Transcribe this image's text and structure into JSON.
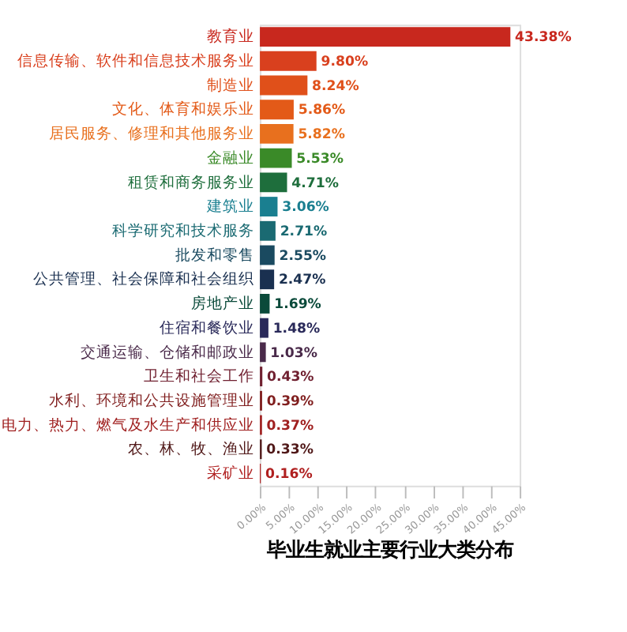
{
  "chart_data": {
    "type": "bar",
    "orientation": "horizontal",
    "title": "毕业生就业主要行业大类分布",
    "categories": [
      "教育业",
      "信息传输、软件和信息技术服务业",
      "制造业",
      "文化、体育和娱乐业",
      "居民服务、修理和其他服务业",
      "金融业",
      "租赁和商务服务业",
      "建筑业",
      "科学研究和技术服务",
      "批发和零售",
      "公共管理、社会保障和社会组织",
      "房地产业",
      "住宿和餐饮业",
      "交通运输、仓储和邮政业",
      "卫生和社会工作",
      "水利、环境和公共设施管理业",
      "电力、热力、燃气及水生产和供应业",
      "农、林、牧、渔业",
      "采矿业"
    ],
    "values": [
      43.38,
      9.8,
      8.24,
      5.86,
      5.82,
      5.53,
      4.71,
      3.06,
      2.71,
      2.55,
      2.47,
      1.69,
      1.48,
      1.03,
      0.43,
      0.39,
      0.37,
      0.33,
      0.16
    ],
    "colors": [
      "#c8281e",
      "#d9401e",
      "#e0501a",
      "#e35a18",
      "#e8701e",
      "#3a8a28",
      "#1e6e3c",
      "#1a7f90",
      "#1a6a72",
      "#1a4a60",
      "#1a3050",
      "#0a4a3a",
      "#2a2a5a",
      "#4a2a4a",
      "#702030",
      "#801e1e",
      "#a02020",
      "#501818",
      "#b02020"
    ],
    "xlim": [
      0,
      45
    ],
    "xticks": [
      {
        "value": 0,
        "label": "0.00%"
      },
      {
        "value": 5,
        "label": "5.00%"
      },
      {
        "value": 10,
        "label": "10.00%"
      },
      {
        "value": 15,
        "label": "15.00%"
      },
      {
        "value": 20,
        "label": "20.00%"
      },
      {
        "value": 25,
        "label": "25.00%"
      },
      {
        "value": 30,
        "label": "30.00%"
      },
      {
        "value": 35,
        "label": "35.00%"
      },
      {
        "value": 40,
        "label": "40.00%"
      },
      {
        "value": 45,
        "label": "45.00%"
      }
    ],
    "value_labels": [
      "43.38%",
      "9.80%",
      "8.24%",
      "5.86%",
      "5.82%",
      "5.53%",
      "4.71%",
      "3.06%",
      "2.71%",
      "2.55%",
      "2.47%",
      "1.69%",
      "1.48%",
      "1.03%",
      "0.43%",
      "0.39%",
      "0.37%",
      "0.33%",
      "0.16%"
    ],
    "grid": false
  }
}
